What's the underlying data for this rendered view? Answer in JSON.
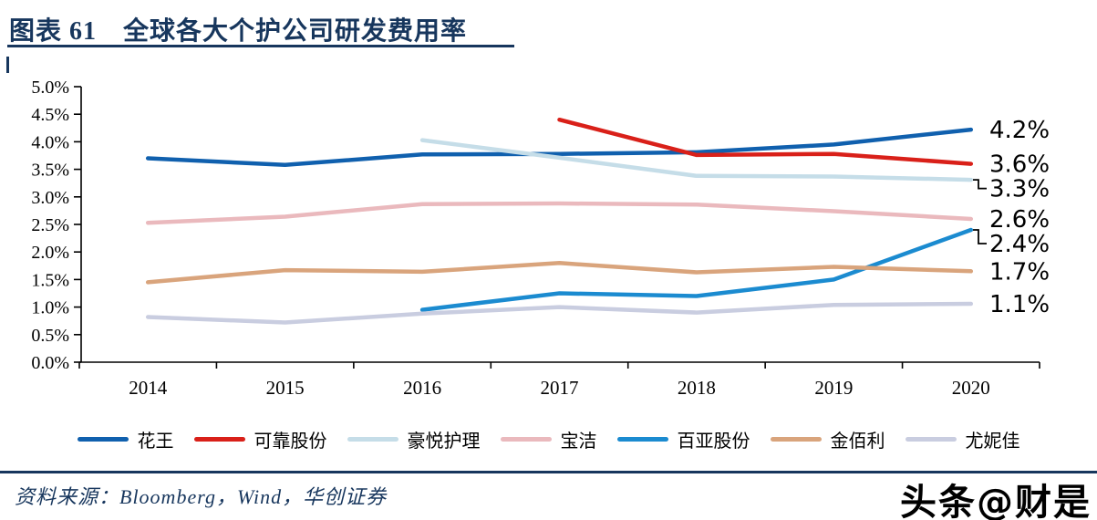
{
  "header": {
    "title": "图表 61　全球各大个护公司研发费用率"
  },
  "chart_data": {
    "type": "line",
    "title": "全球各大个护公司研发费用率",
    "categories": [
      "2014",
      "2015",
      "2016",
      "2017",
      "2018",
      "2019",
      "2020"
    ],
    "y_axis": {
      "min": 0,
      "max": 5,
      "step": 0.5,
      "unit": "%"
    },
    "y_ticks": [
      "0.0%",
      "0.5%",
      "1.0%",
      "1.5%",
      "2.0%",
      "2.5%",
      "3.0%",
      "3.5%",
      "4.0%",
      "4.5%",
      "5.0%"
    ],
    "grid": false,
    "legend_position": "bottom",
    "series": [
      {
        "name": "花王",
        "color": "#1060ae",
        "values": [
          3.7,
          3.58,
          3.77,
          3.78,
          3.81,
          3.95,
          4.22
        ],
        "end_label": "4.2%"
      },
      {
        "name": "可靠股份",
        "color": "#d92019",
        "values": [
          null,
          null,
          null,
          4.4,
          3.76,
          3.78,
          3.6
        ],
        "end_label": "3.6%"
      },
      {
        "name": "豪悦护理",
        "color": "#c5dde8",
        "values": [
          null,
          null,
          4.03,
          3.71,
          3.38,
          3.37,
          3.31
        ],
        "end_label": "3.3%"
      },
      {
        "name": "宝洁",
        "color": "#eab9bd",
        "values": [
          2.53,
          2.64,
          2.87,
          2.88,
          2.86,
          2.74,
          2.6
        ],
        "end_label": "2.6%"
      },
      {
        "name": "百亚股份",
        "color": "#1b8bd0",
        "values": [
          null,
          null,
          0.95,
          1.25,
          1.2,
          1.5,
          2.4
        ],
        "end_label": "2.4%"
      },
      {
        "name": "金佰利",
        "color": "#d9a47c",
        "values": [
          1.45,
          1.67,
          1.64,
          1.8,
          1.63,
          1.73,
          1.65
        ],
        "end_label": "1.7%"
      },
      {
        "name": "尤妮佳",
        "color": "#c9cde0",
        "values": [
          0.82,
          0.72,
          0.88,
          1.0,
          0.9,
          1.04,
          1.06
        ],
        "end_label": "1.1%"
      }
    ]
  },
  "footer": {
    "source_text": "资料来源：Bloomberg，Wind，华创证券",
    "watermark": "头条@财是"
  },
  "colors": {
    "accent": "#17365d",
    "axis": "#000000"
  }
}
